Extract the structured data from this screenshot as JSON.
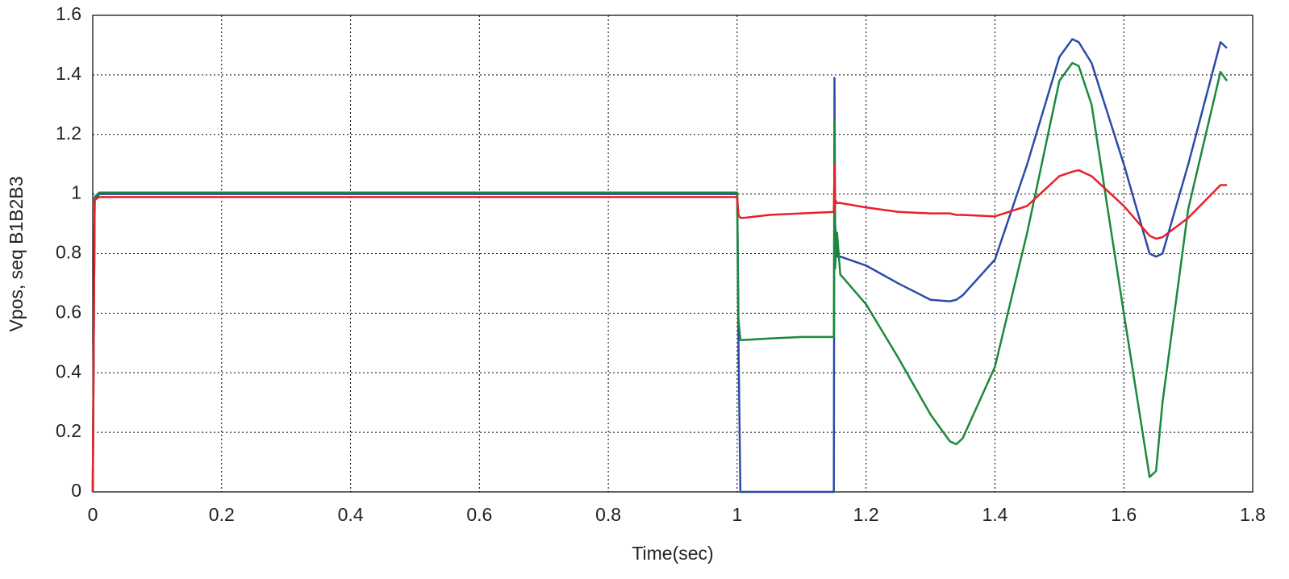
{
  "chart_data": {
    "type": "line",
    "xlabel": "Time(sec)",
    "ylabel": "Vpos, seq B1B2B3",
    "x": [
      0,
      0.003,
      0.01,
      0.1,
      0.5,
      1.0,
      1.002,
      1.005,
      1.01,
      1.05,
      1.1,
      1.15,
      1.151,
      1.152,
      1.155,
      1.16,
      1.2,
      1.25,
      1.3,
      1.33,
      1.34,
      1.35,
      1.4,
      1.45,
      1.5,
      1.52,
      1.53,
      1.55,
      1.6,
      1.64,
      1.65,
      1.66,
      1.7,
      1.75,
      1.76
    ],
    "series": [
      {
        "color": "#2b4ba8",
        "values": [
          0,
          0.98,
          1.0,
          1.0,
          1.0,
          1.0,
          0.5,
          0,
          0,
          0,
          0,
          0,
          1.39,
          0.9,
          0.79,
          0.79,
          0.76,
          0.7,
          0.645,
          0.64,
          0.645,
          0.66,
          0.78,
          1.1,
          1.46,
          1.52,
          1.51,
          1.44,
          1.1,
          0.8,
          0.79,
          0.8,
          1.1,
          1.51,
          1.49
        ]
      },
      {
        "color": "#1a8a3a",
        "values": [
          0,
          0.99,
          1.005,
          1.005,
          1.005,
          1.005,
          0.58,
          0.51,
          0.51,
          0.515,
          0.52,
          0.52,
          1.25,
          0.75,
          0.87,
          0.73,
          0.63,
          0.45,
          0.26,
          0.17,
          0.16,
          0.18,
          0.42,
          0.87,
          1.38,
          1.44,
          1.43,
          1.3,
          0.6,
          0.05,
          0.07,
          0.3,
          0.95,
          1.41,
          1.38
        ]
      },
      {
        "color": "#e8202a",
        "values": [
          0,
          0.98,
          0.99,
          0.99,
          0.99,
          0.99,
          0.93,
          0.92,
          0.92,
          0.93,
          0.935,
          0.94,
          1.1,
          0.98,
          0.97,
          0.97,
          0.955,
          0.94,
          0.935,
          0.935,
          0.93,
          0.93,
          0.925,
          0.96,
          1.06,
          1.075,
          1.08,
          1.06,
          0.96,
          0.86,
          0.85,
          0.855,
          0.92,
          1.03,
          1.03
        ]
      }
    ],
    "xlim": [
      0,
      1.8
    ],
    "xticks": [
      0,
      0.2,
      0.4,
      0.6,
      0.8,
      1,
      1.2,
      1.4,
      1.6,
      1.8
    ],
    "ylim": [
      0,
      1.6
    ],
    "yticks": [
      0,
      0.2,
      0.4,
      0.6,
      0.8,
      1,
      1.2,
      1.4,
      1.6
    ],
    "grid": true
  }
}
